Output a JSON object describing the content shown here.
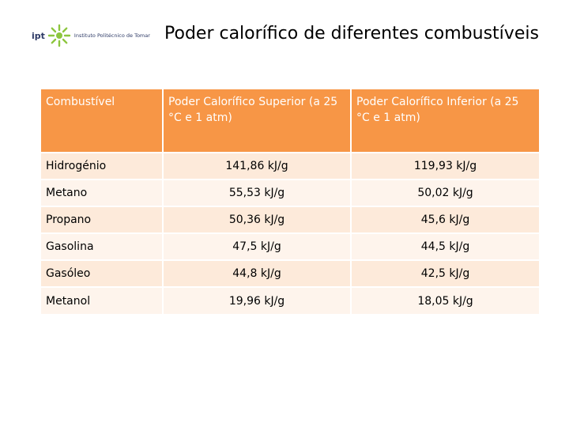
{
  "logo": {
    "mark": "ipt",
    "text": "Instituto Politécnico de Tomar"
  },
  "title": "Poder calorífico de diferentes combustíveis",
  "table": {
    "headers": [
      "Combustível",
      "Poder Calorífico Superior (a 25 °C e 1 atm)",
      "Poder Calorífico Inferior (a 25 °C e 1 atm)"
    ],
    "rows": [
      {
        "fuel": "Hidrogénio",
        "superior": "141,86 kJ/g",
        "inferior": "119,93 kJ/g"
      },
      {
        "fuel": "Metano",
        "superior": "55,53 kJ/g",
        "inferior": "50,02 kJ/g"
      },
      {
        "fuel": "Propano",
        "superior": "50,36 kJ/g",
        "inferior": "45,6 kJ/g"
      },
      {
        "fuel": "Gasolina",
        "superior": "47,5 kJ/g",
        "inferior": "44,5 kJ/g"
      },
      {
        "fuel": "Gasóleo",
        "superior": "44,8 kJ/g",
        "inferior": "42,5 kJ/g"
      },
      {
        "fuel": "Metanol",
        "superior": "19,96 kJ/g",
        "inferior": "18,05 kJ/g"
      }
    ]
  },
  "colors": {
    "header_bg": "#f79646",
    "row_odd": "#fdeada",
    "row_even": "#fef4ec",
    "logo_blue": "#2d3a66",
    "logo_green": "#8dc63f"
  }
}
